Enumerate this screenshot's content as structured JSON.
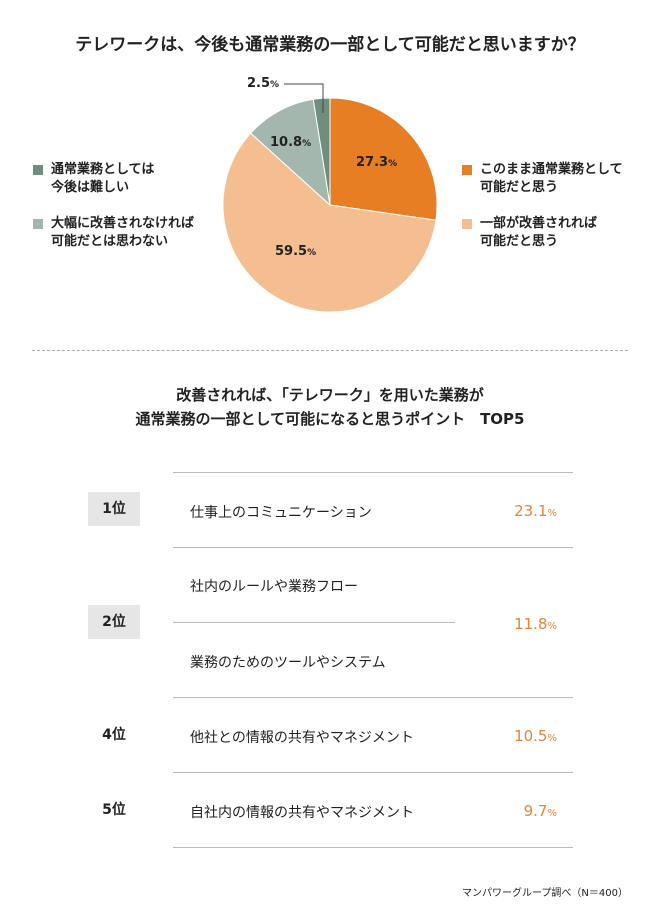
{
  "chart_data": [
    {
      "type": "pie",
      "title": "テレワークは、今後も通常業務の一部として可能だと思いますか？",
      "slices": [
        {
          "label": "このまま通常業務として可能だと思う",
          "label_lines": [
            "このまま通常業務として",
            "可能だと思う"
          ],
          "value": 27.3,
          "display": "27.3",
          "color": "#E87E24"
        },
        {
          "label": "一部が改善されれば可能だと思う",
          "label_lines": [
            "一部が改善されれば",
            "可能だと思う"
          ],
          "value": 59.5,
          "display": "59.5",
          "color": "#F4BE91"
        },
        {
          "label": "大幅に改善されなければ可能だとは思わない",
          "label_lines": [
            "大幅に改善されなければ",
            "可能だとは思わない"
          ],
          "value": 10.8,
          "display": "10.8",
          "color": "#A3B7AE"
        },
        {
          "label": "通常業務としては今後は難しい",
          "label_lines": [
            "通常業務としては",
            "今後は難しい"
          ],
          "value": 2.5,
          "display": "2.5",
          "color": "#6E8F80"
        }
      ],
      "unit": "%",
      "start": "top",
      "direction": "clockwise"
    },
    {
      "type": "table",
      "title_lines": [
        "改善されれば、「テレワーク」を用いた業務が",
        "通常業務の一部として可能になると思うポイント　TOP5"
      ],
      "rows": [
        {
          "rank": "1位",
          "items": [
            "仕事上のコミュニケーション"
          ],
          "value": "23.1"
        },
        {
          "rank": "2位",
          "items": [
            "社内のルールや業務フロー",
            "業務のためのツールやシステム"
          ],
          "value": "11.8"
        },
        {
          "rank": "4位",
          "items": [
            "他社との情報の共有やマネジメント"
          ],
          "value": "10.5"
        },
        {
          "rank": "5位",
          "items": [
            "自社内の情報の共有やマネジメント"
          ],
          "value": "9.7"
        }
      ],
      "unit": "%"
    }
  ],
  "source": "マンパワーグループ調べ（N＝400）"
}
